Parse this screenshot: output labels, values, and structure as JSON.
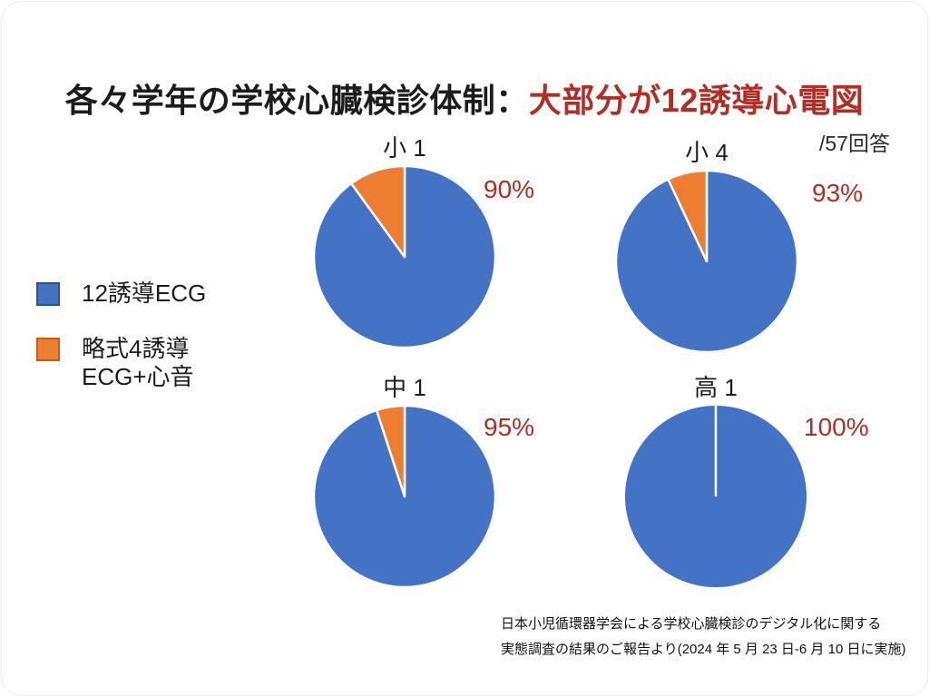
{
  "slide": {
    "title_black": "各々学年の学校心臓検診体制：",
    "title_red": "大部分が12誘導心電図",
    "responses_note": "/57回答",
    "legend": {
      "items": [
        {
          "label_lines": [
            "12誘導ECG"
          ],
          "color": "#4472C4",
          "border_color": "#2F528F"
        },
        {
          "label_lines": [
            "略式4誘導",
            "ECG+心音"
          ],
          "color": "#ED7D31",
          "border_color": "#C55A11"
        }
      ]
    },
    "source_lines": [
      "日本小児循環器学会による学校心臓検診のデジタル化に関する",
      "実態調査の結果のご報告より(2024 年 5 月 23 日-6 月 10 日に実施)"
    ]
  },
  "colors": {
    "blue": "#4472C4",
    "orange": "#ED7D31",
    "accent_red": "#B22D23",
    "text_black": "#1c1c1c"
  },
  "chart_data": [
    {
      "type": "pie",
      "title": "小 1",
      "value_label": "90%",
      "start_angle_deg": 0,
      "direction": "clockwise",
      "series": [
        {
          "name": "12誘導ECG",
          "value": 90,
          "color": "#4472C4"
        },
        {
          "name": "略式4誘導ECG+心音",
          "value": 10,
          "color": "#ED7D31"
        }
      ]
    },
    {
      "type": "pie",
      "title": "小 4",
      "value_label": "93%",
      "start_angle_deg": 0,
      "direction": "clockwise",
      "series": [
        {
          "name": "12誘導ECG",
          "value": 93,
          "color": "#4472C4"
        },
        {
          "name": "略式4誘導ECG+心音",
          "value": 7,
          "color": "#ED7D31"
        }
      ]
    },
    {
      "type": "pie",
      "title": "中 1",
      "value_label": "95%",
      "start_angle_deg": 0,
      "direction": "clockwise",
      "series": [
        {
          "name": "12誘導ECG",
          "value": 95,
          "color": "#4472C4"
        },
        {
          "name": "略式4誘導ECG+心音",
          "value": 5,
          "color": "#ED7D31"
        }
      ]
    },
    {
      "type": "pie",
      "title": "高 1",
      "value_label": "100%",
      "start_angle_deg": 0,
      "direction": "clockwise",
      "series": [
        {
          "name": "12誘導ECG",
          "value": 100,
          "color": "#4472C4"
        },
        {
          "name": "略式4誘導ECG+心音",
          "value": 0,
          "color": "#ED7D31"
        }
      ]
    }
  ]
}
